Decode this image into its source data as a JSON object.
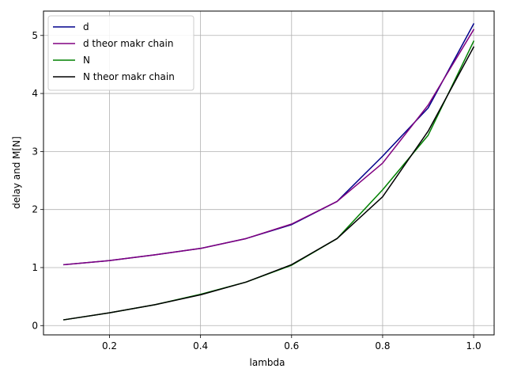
{
  "chart_data": {
    "type": "line",
    "xlabel": "lambda",
    "ylabel": "delay and M[N]",
    "xlim": [
      0.055,
      1.045
    ],
    "ylim": [
      -0.16,
      5.42
    ],
    "xticks": [
      0.2,
      0.4,
      0.6,
      0.8,
      1.0
    ],
    "xtick_labels": [
      "0.2",
      "0.4",
      "0.6",
      "0.8",
      "1.0"
    ],
    "yticks": [
      0,
      1,
      2,
      3,
      4,
      5
    ],
    "ytick_labels": [
      "0",
      "1",
      "2",
      "3",
      "4",
      "5"
    ],
    "grid": true,
    "legend_position": "top-left",
    "x": [
      0.1,
      0.2,
      0.3,
      0.4,
      0.5,
      0.6,
      0.7,
      0.8,
      0.9,
      1.0
    ],
    "series": [
      {
        "name": "d",
        "color": "#00008b",
        "values": [
          1.05,
          1.12,
          1.22,
          1.33,
          1.5,
          1.74,
          2.14,
          2.92,
          3.75,
          5.2
        ]
      },
      {
        "name": "d theor makr chain",
        "color": "#800080",
        "values": [
          1.05,
          1.12,
          1.22,
          1.33,
          1.5,
          1.75,
          2.14,
          2.8,
          3.8,
          5.1
        ]
      },
      {
        "name": "N",
        "color": "#008000",
        "values": [
          0.1,
          0.22,
          0.36,
          0.54,
          0.75,
          1.04,
          1.5,
          2.34,
          3.28,
          4.9
        ]
      },
      {
        "name": "N theor makr chain",
        "color": "#000000",
        "values": [
          0.1,
          0.22,
          0.36,
          0.53,
          0.75,
          1.05,
          1.5,
          2.22,
          3.35,
          4.8
        ]
      }
    ]
  }
}
